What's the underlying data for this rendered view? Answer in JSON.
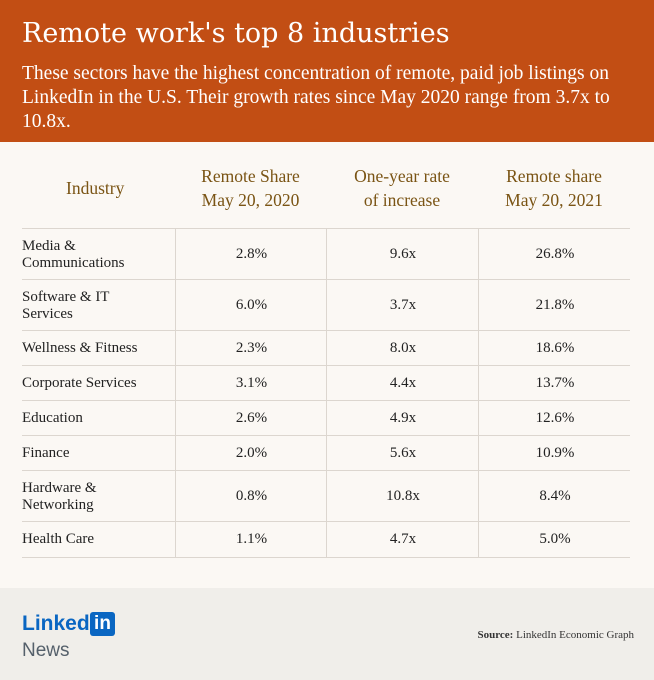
{
  "chart_data": {
    "type": "table",
    "title": "Remote work's top 8 industries",
    "subtitle": "These sectors have the highest concentration of remote, paid job listings on LinkedIn in the U.S. Their growth rates since May 2020 range from 3.7x to 10.8x.",
    "columns": [
      {
        "line1": "Industry",
        "line2": ""
      },
      {
        "line1": "Remote Share",
        "line2": "May 20, 2020"
      },
      {
        "line1": "One-year rate",
        "line2": "of increase"
      },
      {
        "line1": "Remote share",
        "line2": "May 20, 2021"
      }
    ],
    "rows": [
      {
        "industry": [
          "Media &",
          "Communications"
        ],
        "share_2020": "2.8%",
        "rate": "9.6x",
        "share_2021": "26.8%"
      },
      {
        "industry": [
          "Software & IT",
          "Services"
        ],
        "share_2020": "6.0%",
        "rate": "3.7x",
        "share_2021": "21.8%"
      },
      {
        "industry": [
          "Wellness & Fitness"
        ],
        "share_2020": "2.3%",
        "rate": "8.0x",
        "share_2021": "18.6%"
      },
      {
        "industry": [
          "Corporate Services"
        ],
        "share_2020": "3.1%",
        "rate": "4.4x",
        "share_2021": "13.7%"
      },
      {
        "industry": [
          "Education"
        ],
        "share_2020": "2.6%",
        "rate": "4.9x",
        "share_2021": "12.6%"
      },
      {
        "industry": [
          "Finance"
        ],
        "share_2020": "2.0%",
        "rate": "5.6x",
        "share_2021": "10.9%"
      },
      {
        "industry": [
          "Hardware &",
          "Networking"
        ],
        "share_2020": "0.8%",
        "rate": "10.8x",
        "share_2021": "8.4%"
      },
      {
        "industry": [
          "Health Care"
        ],
        "share_2020": "1.1%",
        "rate": "4.7x",
        "share_2021": "5.0%"
      }
    ]
  },
  "footer": {
    "logo_linked": "Linked",
    "logo_in": "in",
    "logo_news": "News",
    "source_label": "Source:",
    "source_text": "LinkedIn Economic Graph"
  },
  "colors": {
    "header_bg": "#c24e14",
    "header_text": "#ffffff",
    "column_header_text": "#7a5414",
    "linkedin_blue": "#0a66c2"
  }
}
